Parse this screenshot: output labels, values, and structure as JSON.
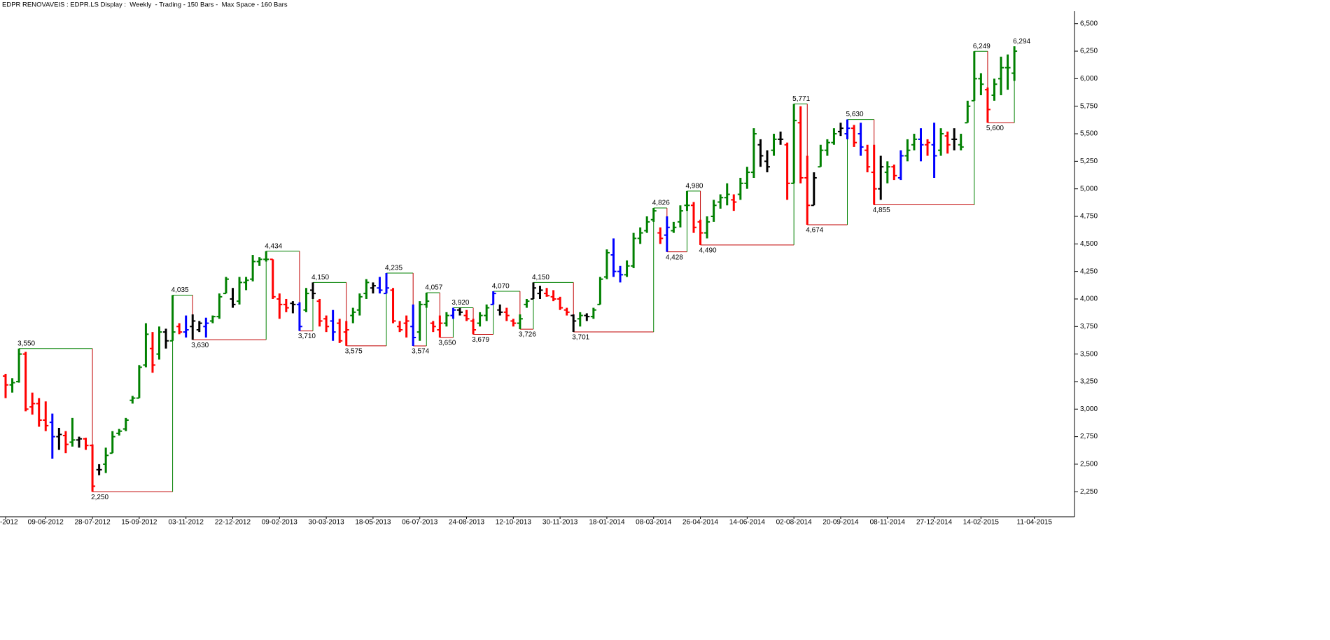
{
  "chart_data": {
    "type": "ohlc",
    "title": "EDPR RENOVAVEIS : EDPR.LS Display :  Weekly  - Trading - 150 Bars -  Max Space - 160 Bars",
    "categories": [
      "-2012",
      null,
      null,
      null,
      null,
      null,
      "09-06-2012",
      null,
      null,
      null,
      null,
      null,
      null,
      "28-07-2012",
      null,
      null,
      null,
      null,
      null,
      null,
      "15-09-2012",
      null,
      null,
      null,
      null,
      null,
      null,
      "03-11-2012",
      null,
      null,
      null,
      null,
      null,
      null,
      "22-12-2012",
      null,
      null,
      null,
      null,
      null,
      null,
      "09-02-2013",
      null,
      null,
      null,
      null,
      null,
      null,
      "30-03-2013",
      null,
      null,
      null,
      null,
      null,
      null,
      "18-05-2013",
      null,
      null,
      null,
      null,
      null,
      null,
      "06-07-2013",
      null,
      null,
      null,
      null,
      null,
      null,
      "24-08-2013",
      null,
      null,
      null,
      null,
      null,
      null,
      "12-10-2013",
      null,
      null,
      null,
      null,
      null,
      null,
      "30-11-2013",
      null,
      null,
      null,
      null,
      null,
      null,
      "18-01-2014",
      null,
      null,
      null,
      null,
      null,
      null,
      "08-03-2014",
      null,
      null,
      null,
      null,
      null,
      null,
      "26-04-2014",
      null,
      null,
      null,
      null,
      null,
      null,
      "14-06-2014",
      null,
      null,
      null,
      null,
      null,
      null,
      "02-08-2014",
      null,
      null,
      null,
      null,
      null,
      null,
      "20-09-2014",
      null,
      null,
      null,
      null,
      null,
      null,
      "08-11-2014",
      null,
      null,
      null,
      null,
      null,
      null,
      "27-12-2014",
      null,
      null,
      null,
      null,
      null,
      null,
      "14-02-2015",
      null,
      null,
      null,
      null,
      null,
      null,
      null,
      "11-04-2015",
      null,
      null,
      null,
      null,
      null
    ],
    "open": [
      3.3,
      3.22,
      3.25,
      3.5,
      3.02,
      3.05,
      2.9,
      2.88,
      2.75,
      2.76,
      2.7,
      2.72,
      2.73,
      2.67,
      2.45,
      2.5,
      2.6,
      2.78,
      2.82,
      3.08,
      3.1,
      3.4,
      3.55,
      3.5,
      3.7,
      3.62,
      3.75,
      3.7,
      3.75,
      3.72,
      3.75,
      3.8,
      3.84,
      4.05,
      4.0,
      3.98,
      4.15,
      4.18,
      4.34,
      4.36,
      4.36,
      4.0,
      3.95,
      3.96,
      3.95,
      3.9,
      4.08,
      3.98,
      3.82,
      3.8,
      3.78,
      3.7,
      3.85,
      3.9,
      4.05,
      4.1,
      4.1,
      4.05,
      4.08,
      3.75,
      3.78,
      3.75,
      3.7,
      3.95,
      3.78,
      3.72,
      3.78,
      3.85,
      3.9,
      3.85,
      3.8,
      3.78,
      3.85,
      3.95,
      3.9,
      3.88,
      3.8,
      3.78,
      3.95,
      4.0,
      4.05,
      4.05,
      4.02,
      4.0,
      3.9,
      3.85,
      3.82,
      3.85,
      3.84,
      3.95,
      4.2,
      4.4,
      4.25,
      4.22,
      4.3,
      4.55,
      4.62,
      4.72,
      4.6,
      4.58,
      4.62,
      4.7,
      4.85,
      4.85,
      4.7,
      4.6,
      4.75,
      4.88,
      4.92,
      4.9,
      4.95,
      5.05,
      5.15,
      5.4,
      5.25,
      5.35,
      5.45,
      5.4,
      5.05,
      5.6,
      5.1,
      4.85,
      5.2,
      5.35,
      5.42,
      5.52,
      5.5,
      5.55,
      5.5,
      5.35,
      5.15,
      5.0,
      5.15,
      5.2,
      5.1,
      5.3,
      5.4,
      5.45,
      5.4,
      5.4,
      5.35,
      5.48,
      5.45,
      5.4,
      5.6,
      5.8,
      6.0,
      5.9,
      5.85,
      6.0,
      6.1,
      6.05,
      null,
      null,
      null,
      null,
      null,
      null,
      null,
      null
    ],
    "high": [
      3.32,
      3.28,
      3.55,
      3.52,
      3.15,
      3.1,
      3.07,
      2.96,
      2.83,
      2.8,
      2.92,
      2.75,
      2.74,
      2.68,
      2.5,
      2.65,
      2.8,
      2.82,
      2.92,
      3.12,
      3.4,
      3.78,
      3.7,
      3.75,
      3.73,
      4.035,
      3.78,
      3.85,
      3.86,
      3.8,
      3.83,
      3.85,
      4.05,
      4.2,
      4.1,
      4.2,
      4.2,
      4.4,
      4.38,
      4.434,
      4.36,
      4.05,
      4.0,
      3.98,
      3.97,
      4.1,
      4.15,
      4.0,
      3.85,
      3.9,
      3.82,
      3.8,
      3.92,
      4.05,
      4.18,
      4.15,
      4.2,
      4.235,
      4.1,
      3.8,
      3.85,
      3.95,
      3.98,
      4.057,
      3.8,
      3.85,
      3.88,
      3.92,
      3.92,
      3.9,
      3.82,
      3.88,
      3.95,
      4.07,
      3.95,
      3.92,
      3.82,
      3.86,
      4.0,
      4.15,
      4.12,
      4.1,
      4.08,
      4.02,
      3.92,
      3.86,
      3.88,
      3.87,
      3.92,
      4.2,
      4.45,
      4.55,
      4.3,
      4.35,
      4.6,
      4.65,
      4.75,
      4.826,
      4.65,
      4.75,
      4.7,
      4.85,
      4.98,
      4.88,
      4.72,
      4.75,
      4.9,
      4.95,
      5.05,
      4.95,
      5.1,
      5.2,
      5.55,
      5.45,
      5.35,
      5.5,
      5.52,
      5.42,
      5.771,
      5.75,
      5.3,
      5.15,
      5.4,
      5.45,
      5.55,
      5.6,
      5.63,
      5.58,
      5.6,
      5.4,
      5.4,
      5.3,
      5.25,
      5.22,
      5.35,
      5.45,
      5.5,
      5.55,
      5.45,
      5.6,
      5.55,
      5.52,
      5.55,
      5.5,
      5.8,
      6.249,
      6.05,
      5.92,
      6.0,
      6.2,
      6.22,
      6.294,
      null,
      null,
      null,
      null,
      null,
      null,
      null,
      null
    ],
    "low": [
      3.1,
      3.15,
      3.24,
      2.98,
      2.95,
      2.84,
      2.8,
      2.55,
      2.63,
      2.6,
      2.66,
      2.65,
      2.63,
      2.25,
      2.4,
      2.42,
      2.6,
      2.76,
      2.8,
      3.05,
      3.1,
      3.38,
      3.33,
      3.45,
      3.55,
      3.62,
      3.68,
      3.65,
      3.63,
      3.7,
      3.65,
      3.78,
      3.82,
      4.05,
      3.92,
      3.95,
      4.08,
      4.16,
      4.3,
      4.34,
      4.0,
      3.82,
      3.88,
      3.87,
      3.71,
      3.88,
      4.0,
      3.75,
      3.7,
      3.62,
      3.6,
      3.575,
      3.78,
      3.85,
      4.0,
      4.05,
      4.05,
      4.05,
      3.78,
      3.7,
      3.65,
      3.574,
      3.62,
      3.92,
      3.7,
      3.65,
      3.75,
      3.82,
      3.85,
      3.8,
      3.679,
      3.75,
      3.8,
      3.95,
      3.85,
      3.8,
      3.75,
      3.726,
      3.92,
      4.0,
      4.0,
      4.02,
      3.98,
      3.9,
      3.85,
      3.701,
      3.75,
      3.8,
      3.82,
      3.95,
      4.18,
      4.2,
      4.15,
      4.2,
      4.28,
      4.5,
      4.6,
      4.7,
      4.5,
      4.428,
      4.6,
      4.65,
      4.8,
      4.6,
      4.49,
      4.55,
      4.7,
      4.82,
      4.85,
      4.8,
      4.9,
      5.0,
      5.1,
      5.2,
      5.15,
      5.3,
      5.4,
      4.9,
      5.05,
      5.05,
      4.674,
      4.85,
      5.2,
      5.3,
      5.4,
      5.48,
      5.45,
      5.38,
      5.3,
      5.15,
      4.855,
      4.9,
      5.05,
      5.08,
      5.08,
      5.25,
      5.35,
      5.25,
      5.3,
      5.1,
      5.3,
      5.32,
      5.35,
      5.35,
      5.6,
      5.8,
      5.85,
      5.6,
      5.8,
      5.85,
      5.9,
      5.98,
      null,
      null,
      null,
      null,
      null,
      null,
      null,
      null
    ],
    "close": [
      3.22,
      3.24,
      3.5,
      3.0,
      3.05,
      2.9,
      2.85,
      2.75,
      2.77,
      2.68,
      2.72,
      2.73,
      2.67,
      2.3,
      2.45,
      2.58,
      2.75,
      2.8,
      2.9,
      3.1,
      3.38,
      3.68,
      3.4,
      3.7,
      3.62,
      3.7,
      3.7,
      3.72,
      3.8,
      3.78,
      3.78,
      3.84,
      4.02,
      4.18,
      3.95,
      4.15,
      4.17,
      4.34,
      4.36,
      4.36,
      4.02,
      3.95,
      3.92,
      3.95,
      3.75,
      4.05,
      4.05,
      3.8,
      3.75,
      3.7,
      3.62,
      3.72,
      3.88,
      4.02,
      4.15,
      4.12,
      4.08,
      4.1,
      3.8,
      3.72,
      3.8,
      3.65,
      3.95,
      3.98,
      3.75,
      3.78,
      3.85,
      3.9,
      3.88,
      3.82,
      3.72,
      3.85,
      3.92,
      4.05,
      3.88,
      3.85,
      3.78,
      3.82,
      3.98,
      4.1,
      4.08,
      4.03,
      4.0,
      3.92,
      3.88,
      3.8,
      3.85,
      3.84,
      3.9,
      4.18,
      4.42,
      4.25,
      4.22,
      4.3,
      4.55,
      4.6,
      4.7,
      4.8,
      4.55,
      4.65,
      4.65,
      4.8,
      4.85,
      4.65,
      4.6,
      4.7,
      4.85,
      4.92,
      4.95,
      4.88,
      5.05,
      5.15,
      5.5,
      5.3,
      5.2,
      5.45,
      5.45,
      5.05,
      5.62,
      5.1,
      4.85,
      5.1,
      5.35,
      5.42,
      5.5,
      5.55,
      5.55,
      5.42,
      5.38,
      5.2,
      5.0,
      5.2,
      5.2,
      5.12,
      5.3,
      5.35,
      5.45,
      5.4,
      5.42,
      5.3,
      5.5,
      5.4,
      5.45,
      5.38,
      5.75,
      6.0,
      5.95,
      5.72,
      5.95,
      6.1,
      6.1,
      6.25,
      null,
      null,
      null,
      null,
      null,
      null,
      null,
      null
    ],
    "colors": [
      "red",
      "green",
      "green",
      "red",
      "red",
      "red",
      "red",
      "blue",
      "black",
      "red",
      "green",
      "black",
      "red",
      "red",
      "black",
      "green",
      "green",
      "green",
      "green",
      "green",
      "green",
      "green",
      "red",
      "green",
      "black",
      "green",
      "red",
      "blue",
      "black",
      "black",
      "blue",
      "green",
      "green",
      "green",
      "black",
      "green",
      "green",
      "green",
      "green",
      "green",
      "red",
      "red",
      "red",
      "black",
      "blue",
      "green",
      "black",
      "red",
      "red",
      "blue",
      "red",
      "red",
      "green",
      "green",
      "green",
      "black",
      "blue",
      "blue",
      "red",
      "red",
      "red",
      "blue",
      "green",
      "green",
      "red",
      "red",
      "green",
      "blue",
      "black",
      "red",
      "red",
      "green",
      "green",
      "blue",
      "black",
      "red",
      "red",
      "green",
      "green",
      "black",
      "black",
      "red",
      "red",
      "red",
      "red",
      "black",
      "green",
      "black",
      "green",
      "green",
      "green",
      "blue",
      "blue",
      "green",
      "green",
      "green",
      "green",
      "green",
      "red",
      "blue",
      "green",
      "green",
      "green",
      "red",
      "red",
      "green",
      "green",
      "green",
      "green",
      "red",
      "green",
      "green",
      "green",
      "black",
      "black",
      "green",
      "black",
      "red",
      "green",
      "red",
      "red",
      "black",
      "green",
      "green",
      "green",
      "black",
      "blue",
      "red",
      "blue",
      "red",
      "red",
      "black",
      "green",
      "red",
      "blue",
      "green",
      "green",
      "blue",
      "red",
      "blue",
      "green",
      "red",
      "black",
      "green",
      "green",
      "green",
      "green",
      "red",
      "green",
      "green",
      "green",
      "green",
      null,
      null,
      null,
      null,
      null,
      null,
      null,
      null
    ],
    "swings": [
      {
        "index": 2,
        "value": 3.55,
        "label": "3,550"
      },
      {
        "index": 13,
        "value": 2.25,
        "label": "2,250"
      },
      {
        "index": 25,
        "value": 4.035,
        "label": "4,035"
      },
      {
        "index": 28,
        "value": 3.63,
        "label": "3,630"
      },
      {
        "index": 39,
        "value": 4.434,
        "label": "4,434"
      },
      {
        "index": 44,
        "value": 3.71,
        "label": "3,710"
      },
      {
        "index": 46,
        "value": 4.15,
        "label": "4,150"
      },
      {
        "index": 51,
        "value": 3.575,
        "label": "3,575"
      },
      {
        "index": 57,
        "value": 4.235,
        "label": "4,235"
      },
      {
        "index": 61,
        "value": 3.574,
        "label": "3,574"
      },
      {
        "index": 63,
        "value": 4.057,
        "label": "4,057"
      },
      {
        "index": 65,
        "value": 3.65,
        "label": "3,650"
      },
      {
        "index": 67,
        "value": 3.92,
        "label": "3,920"
      },
      {
        "index": 70,
        "value": 3.679,
        "label": "3,679"
      },
      {
        "index": 73,
        "value": 4.07,
        "label": "4,070"
      },
      {
        "index": 77,
        "value": 3.726,
        "label": "3,726"
      },
      {
        "index": 79,
        "value": 4.15,
        "label": "4,150"
      },
      {
        "index": 85,
        "value": 3.701,
        "label": "3,701"
      },
      {
        "index": 97,
        "value": 4.826,
        "label": "4,826"
      },
      {
        "index": 99,
        "value": 4.428,
        "label": "4,428"
      },
      {
        "index": 102,
        "value": 4.98,
        "label": "4,980"
      },
      {
        "index": 104,
        "value": 4.49,
        "label": "4,490"
      },
      {
        "index": 118,
        "value": 5.771,
        "label": "5,771"
      },
      {
        "index": 120,
        "value": 4.674,
        "label": "4,674"
      },
      {
        "index": 126,
        "value": 5.63,
        "label": "5,630"
      },
      {
        "index": 130,
        "value": 4.855,
        "label": "4,855"
      },
      {
        "index": 145,
        "value": 6.249,
        "label": "6,249"
      },
      {
        "index": 147,
        "value": 5.6,
        "label": "5,600"
      },
      {
        "index": 151,
        "value": 6.294,
        "label": "6,294"
      }
    ],
    "swing_high_color": "#008000",
    "swing_low_color": "#c00000",
    "ylim": [
      2.01,
      6.6
    ],
    "yticks": [
      {
        "value": 2.25,
        "label": "2,250"
      },
      {
        "value": 2.5,
        "label": "2,500"
      },
      {
        "value": 2.75,
        "label": "2,750"
      },
      {
        "value": 3,
        "label": "3,000"
      },
      {
        "value": 3.25,
        "label": "3,250"
      },
      {
        "value": 3.5,
        "label": "3,500"
      },
      {
        "value": 3.75,
        "label": "3,750"
      },
      {
        "value": 4,
        "label": "4,000"
      },
      {
        "value": 4.25,
        "label": "4,250"
      },
      {
        "value": 4.5,
        "label": "4,500"
      },
      {
        "value": 4.75,
        "label": "4,750"
      },
      {
        "value": 5,
        "label": "5,000"
      },
      {
        "value": 5.25,
        "label": "5,250"
      },
      {
        "value": 5.5,
        "label": "5,500"
      },
      {
        "value": 5.75,
        "label": "5,750"
      },
      {
        "value": 6,
        "label": "6,000"
      },
      {
        "value": 6.25,
        "label": "6,250"
      },
      {
        "value": 6.5,
        "label": "6,500"
      }
    ]
  }
}
